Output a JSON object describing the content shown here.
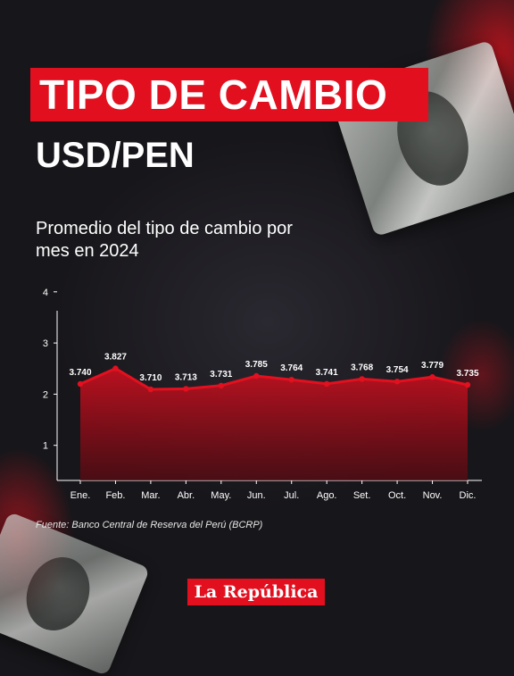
{
  "header": {
    "title": "TIPO DE CAMBIO",
    "subtitle": "USD/PEN"
  },
  "colors": {
    "accent": "#e20f1f",
    "area_top": "#c21020",
    "line": "#e3101f"
  },
  "chart_data": {
    "type": "area",
    "caption": "Promedio del tipo de cambio por mes en 2024",
    "categories": [
      "Ene.",
      "Feb.",
      "Mar.",
      "Abr.",
      "May.",
      "Jun.",
      "Jul.",
      "Ago.",
      "Set.",
      "Oct.",
      "Nov.",
      "Dic."
    ],
    "values": [
      3.74,
      3.827,
      3.71,
      3.713,
      3.731,
      3.785,
      3.764,
      3.741,
      3.768,
      3.754,
      3.779,
      3.735
    ],
    "value_labels": [
      "3.740",
      "3.827",
      "3.710",
      "3.713",
      "3.731",
      "3.785",
      "3.764",
      "3.741",
      "3.768",
      "3.754",
      "3.779",
      "3.735"
    ],
    "y_ticks": [
      "1",
      "2",
      "3",
      "4"
    ],
    "grid": false,
    "legend": "none"
  },
  "source": "Fuente: Banco Central de Reserva del Perú (BCRP)",
  "logo": "La República"
}
